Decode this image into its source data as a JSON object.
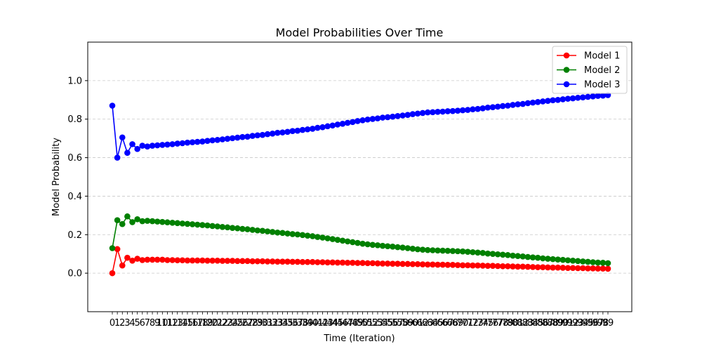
{
  "chart_data": {
    "type": "line",
    "title": "Model Probabilities Over Time",
    "xlabel": "Time (Iteration)",
    "ylabel": "Model Probability",
    "ylim": [
      -0.2,
      1.2
    ],
    "y_ticks": [
      "0.0",
      "0.2",
      "0.4",
      "0.6",
      "0.8",
      "1.0"
    ],
    "grid": "horizontal dashed",
    "legend_position": "top-right",
    "x": [
      0,
      1,
      2,
      3,
      4,
      5,
      6,
      7,
      8,
      9,
      10,
      11,
      12,
      13,
      14,
      15,
      16,
      17,
      18,
      19,
      20,
      21,
      22,
      23,
      24,
      25,
      26,
      27,
      28,
      29,
      30,
      31,
      32,
      33,
      34,
      35,
      36,
      37,
      38,
      39,
      40,
      41,
      42,
      43,
      44,
      45,
      46,
      47,
      48,
      49,
      50,
      51,
      52,
      53,
      54,
      55,
      56,
      57,
      58,
      59,
      60,
      61,
      62,
      63,
      64,
      65,
      66,
      67,
      68,
      69,
      70,
      71,
      72,
      73,
      74,
      75,
      76,
      77,
      78,
      79,
      80,
      81,
      82,
      83,
      84,
      85,
      86,
      87,
      88,
      89,
      90,
      91,
      92,
      93,
      94,
      95,
      96,
      97,
      98,
      99
    ],
    "series": [
      {
        "name": "Model 1",
        "color": "#ff0000",
        "values": [
          0.0,
          0.125,
          0.04,
          0.08,
          0.065,
          0.075,
          0.068,
          0.07,
          0.07,
          0.07,
          0.07,
          0.068,
          0.068,
          0.067,
          0.067,
          0.066,
          0.066,
          0.066,
          0.066,
          0.065,
          0.065,
          0.065,
          0.064,
          0.064,
          0.064,
          0.063,
          0.063,
          0.063,
          0.062,
          0.062,
          0.062,
          0.061,
          0.061,
          0.06,
          0.06,
          0.06,
          0.059,
          0.059,
          0.058,
          0.058,
          0.058,
          0.057,
          0.057,
          0.056,
          0.056,
          0.055,
          0.055,
          0.054,
          0.054,
          0.053,
          0.053,
          0.052,
          0.052,
          0.051,
          0.05,
          0.05,
          0.049,
          0.049,
          0.048,
          0.048,
          0.047,
          0.047,
          0.046,
          0.045,
          0.045,
          0.044,
          0.044,
          0.043,
          0.043,
          0.042,
          0.041,
          0.041,
          0.04,
          0.04,
          0.039,
          0.038,
          0.038,
          0.037,
          0.036,
          0.036,
          0.035,
          0.034,
          0.034,
          0.033,
          0.032,
          0.031,
          0.031,
          0.03,
          0.029,
          0.029,
          0.028,
          0.027,
          0.027,
          0.026,
          0.026,
          0.025,
          0.025,
          0.024,
          0.024,
          0.023
        ]
      },
      {
        "name": "Model 2",
        "color": "#008000",
        "values": [
          0.13,
          0.275,
          0.255,
          0.295,
          0.265,
          0.28,
          0.27,
          0.272,
          0.27,
          0.268,
          0.266,
          0.264,
          0.262,
          0.26,
          0.258,
          0.256,
          0.254,
          0.252,
          0.25,
          0.248,
          0.245,
          0.243,
          0.24,
          0.238,
          0.235,
          0.233,
          0.23,
          0.228,
          0.225,
          0.222,
          0.22,
          0.217,
          0.214,
          0.211,
          0.209,
          0.206,
          0.203,
          0.201,
          0.198,
          0.195,
          0.192,
          0.188,
          0.185,
          0.181,
          0.177,
          0.173,
          0.169,
          0.165,
          0.161,
          0.157,
          0.153,
          0.15,
          0.147,
          0.145,
          0.142,
          0.14,
          0.138,
          0.135,
          0.133,
          0.13,
          0.127,
          0.124,
          0.122,
          0.12,
          0.119,
          0.118,
          0.117,
          0.116,
          0.115,
          0.114,
          0.113,
          0.111,
          0.109,
          0.107,
          0.105,
          0.102,
          0.1,
          0.098,
          0.096,
          0.094,
          0.091,
          0.089,
          0.087,
          0.084,
          0.082,
          0.08,
          0.077,
          0.075,
          0.073,
          0.071,
          0.069,
          0.067,
          0.065,
          0.063,
          0.061,
          0.059,
          0.057,
          0.055,
          0.054,
          0.052
        ]
      },
      {
        "name": "Model 3",
        "color": "#0000ff",
        "values": [
          0.87,
          0.6,
          0.705,
          0.625,
          0.67,
          0.645,
          0.662,
          0.658,
          0.662,
          0.664,
          0.666,
          0.668,
          0.67,
          0.673,
          0.675,
          0.678,
          0.68,
          0.682,
          0.684,
          0.687,
          0.69,
          0.692,
          0.695,
          0.698,
          0.701,
          0.704,
          0.707,
          0.709,
          0.713,
          0.716,
          0.718,
          0.722,
          0.725,
          0.729,
          0.731,
          0.734,
          0.738,
          0.74,
          0.744,
          0.747,
          0.75,
          0.755,
          0.758,
          0.763,
          0.767,
          0.772,
          0.776,
          0.781,
          0.785,
          0.79,
          0.794,
          0.798,
          0.801,
          0.804,
          0.808,
          0.81,
          0.813,
          0.816,
          0.819,
          0.822,
          0.826,
          0.829,
          0.832,
          0.835,
          0.836,
          0.838,
          0.839,
          0.841,
          0.842,
          0.844,
          0.846,
          0.848,
          0.851,
          0.853,
          0.856,
          0.86,
          0.862,
          0.865,
          0.868,
          0.87,
          0.874,
          0.877,
          0.879,
          0.883,
          0.886,
          0.889,
          0.892,
          0.895,
          0.898,
          0.9,
          0.903,
          0.906,
          0.908,
          0.911,
          0.913,
          0.916,
          0.918,
          0.921,
          0.922,
          0.925
        ]
      }
    ]
  }
}
